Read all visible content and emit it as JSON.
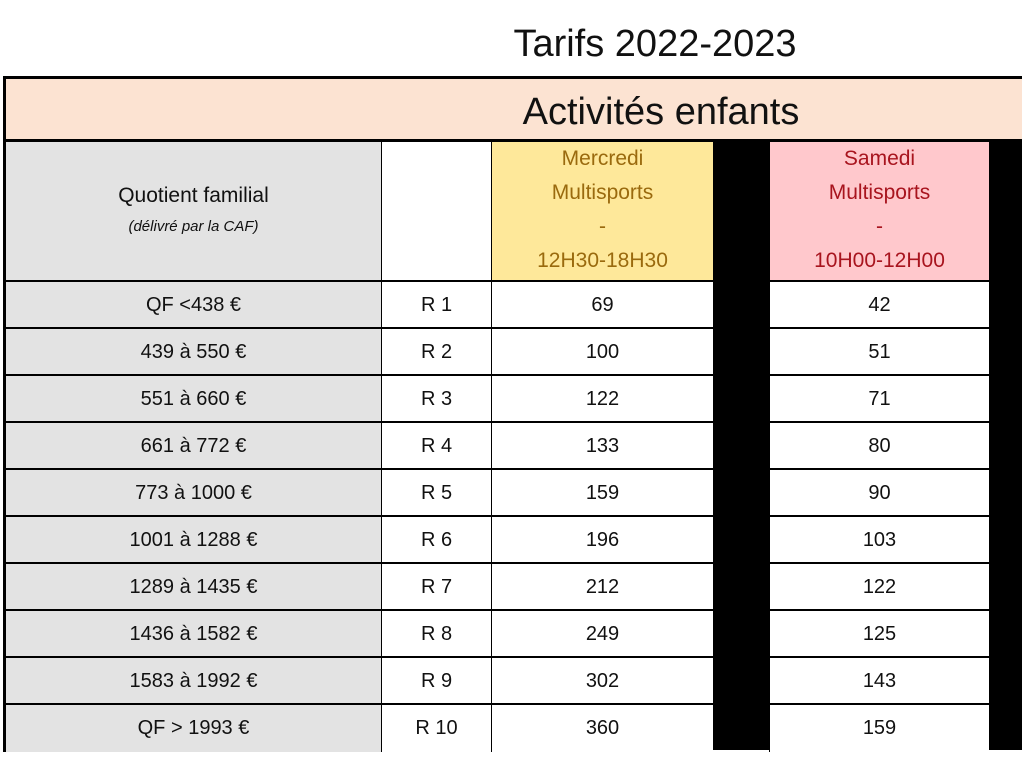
{
  "title": "Tarifs 2022-2023",
  "banner": "Activités enfants",
  "header": {
    "qf_label": "Quotient familial",
    "qf_note": "(délivré par la CAF)",
    "mercredi": {
      "line1": "Mercredi",
      "line2": "Multisports",
      "line3": "-",
      "line4": "12H30-18H30"
    },
    "samedi": {
      "line1": "Samedi",
      "line2": "Multisports",
      "line3": "-",
      "line4": "10H00-12H00"
    }
  },
  "rows": [
    {
      "qf": "QF <438 €",
      "r": "R 1",
      "mercredi": "69",
      "samedi": "42"
    },
    {
      "qf": "439 à 550 €",
      "r": "R 2",
      "mercredi": "100",
      "samedi": "51"
    },
    {
      "qf": "551 à 660 €",
      "r": "R 3",
      "mercredi": "122",
      "samedi": "71"
    },
    {
      "qf": "661 à 772 €",
      "r": "R 4",
      "mercredi": "133",
      "samedi": "80"
    },
    {
      "qf": "773 à 1000 €",
      "r": "R 5",
      "mercredi": "159",
      "samedi": "90"
    },
    {
      "qf": "1001 à 1288 €",
      "r": "R 6",
      "mercredi": "196",
      "samedi": "103"
    },
    {
      "qf": "1289 à 1435 €",
      "r": "R 7",
      "mercredi": "212",
      "samedi": "122"
    },
    {
      "qf": "1436 à 1582 €",
      "r": "R 8",
      "mercredi": "249",
      "samedi": "125"
    },
    {
      "qf": "1583 à 1992 €",
      "r": "R 9",
      "mercredi": "302",
      "samedi": "143"
    },
    {
      "qf": "QF > 1993 €",
      "r": "R 10",
      "mercredi": "360",
      "samedi": "159"
    }
  ]
}
